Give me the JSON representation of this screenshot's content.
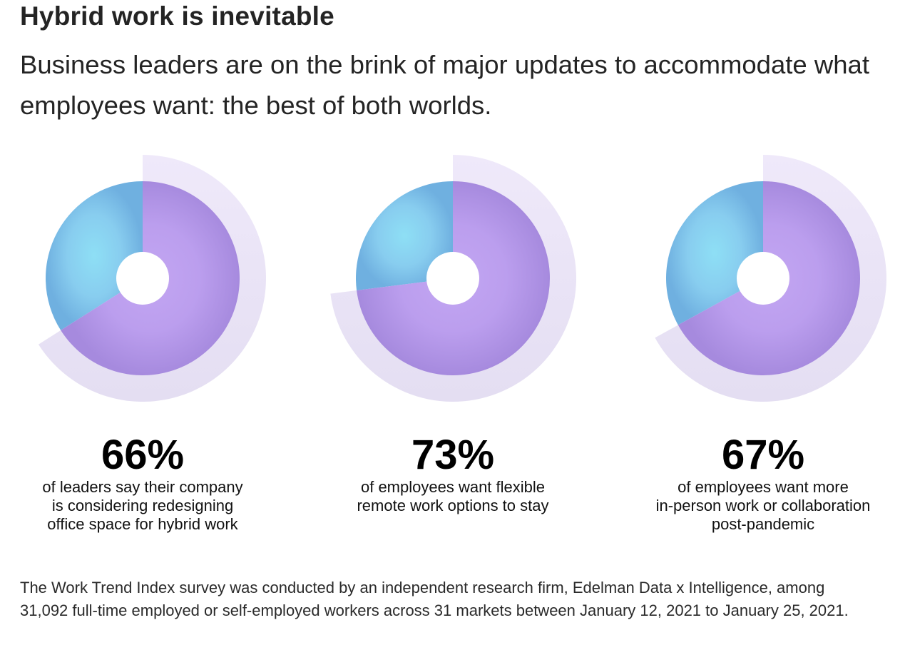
{
  "header": {
    "title": "Hybrid work is inevitable",
    "subtitle": "Business leaders are on the brink of major updates to accommodate what employees want: the best of both worlds."
  },
  "colors": {
    "primary_slice_inner": "#c3a6f2",
    "primary_slice_outer": "#a68ade",
    "remainder_slice_inner": "#8edff5",
    "remainder_slice_outer": "#6fb0e0",
    "outer_ring": "#e6e0f3",
    "outer_ring_top": "#efe9fa",
    "hole": "#ffffff"
  },
  "chart_data": [
    {
      "type": "pie",
      "title": "66%",
      "description": "of leaders say their company\nis considering redesigning\noffice space for hybrid work",
      "slices": [
        {
          "name": "share",
          "value": 66
        },
        {
          "name": "remainder",
          "value": 34
        }
      ],
      "ring_value": 66
    },
    {
      "type": "pie",
      "title": "73%",
      "description": "of employees want flexible\nremote work options to stay",
      "slices": [
        {
          "name": "share",
          "value": 73
        },
        {
          "name": "remainder",
          "value": 27
        }
      ],
      "ring_value": 73
    },
    {
      "type": "pie",
      "title": "67%",
      "description": "of employees want more\nin-person work or collaboration\npost-pandemic",
      "slices": [
        {
          "name": "share",
          "value": 67
        },
        {
          "name": "remainder",
          "value": 33
        }
      ],
      "ring_value": 67
    }
  ],
  "footnote": "The Work Trend Index survey was conducted by an independent research firm, Edelman Data x Intelligence, among 31,092 full-time employed or self-employed workers across 31 markets between January 12, 2021 to January 25, 2021."
}
